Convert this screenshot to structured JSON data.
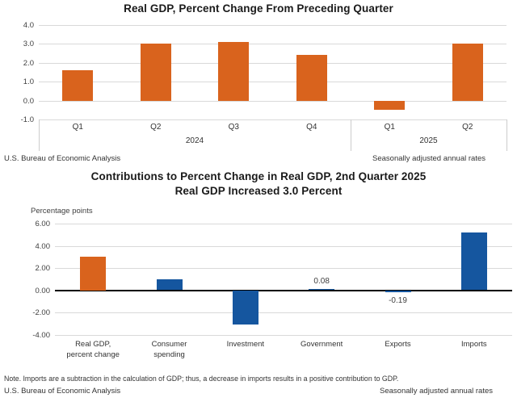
{
  "page_title": "Real GDP charts, U.S. Bureau of Economic Analysis",
  "colors": {
    "orange": "#d9631d",
    "blue": "#15569f",
    "grid": "#d9d9d9",
    "zero_axis": "#000000"
  },
  "chart_data": [
    {
      "type": "bar",
      "title": "Real GDP, Percent Change From Preceding Quarter",
      "categories": [
        "Q1",
        "Q2",
        "Q3",
        "Q4",
        "Q1",
        "Q2"
      ],
      "group_labels": [
        {
          "label": "2024",
          "from": 0,
          "to": 3
        },
        {
          "label": "2025",
          "from": 4,
          "to": 5
        }
      ],
      "values": [
        1.6,
        3.0,
        3.1,
        2.4,
        -0.5,
        3.0
      ],
      "bar_colors": [
        "#d9631d",
        "#d9631d",
        "#d9631d",
        "#d9631d",
        "#d9631d",
        "#d9631d"
      ],
      "ylim": [
        -1.0,
        4.0
      ],
      "yticks": [
        4,
        3,
        2,
        1,
        0,
        -1
      ],
      "ytick_labels": [
        "4.0",
        "3.0",
        "2.0",
        "1.0",
        "0.0",
        "-1.0"
      ],
      "grid": true,
      "legend": "none",
      "source_note": "U.S. Bureau of Economic Analysis",
      "right_note": "Seasonally adjusted annual rates"
    },
    {
      "type": "bar",
      "title": "Contributions to Percent Change in Real GDP, 2nd Quarter 2025",
      "subtitle": "Real GDP Increased 3.0 Percent",
      "ylabel": "Percentage points",
      "categories": [
        "Real GDP,\npercent change",
        "Consumer\nspending",
        "Investment",
        "Government",
        "Exports",
        "Imports"
      ],
      "values": [
        3.0,
        0.98,
        -3.09,
        0.08,
        -0.19,
        5.18
      ],
      "data_labels": [
        "",
        "",
        "",
        "0.08",
        "-0.19",
        ""
      ],
      "bar_colors": [
        "#d9631d",
        "#15569f",
        "#15569f",
        "#15569f",
        "#15569f",
        "#15569f"
      ],
      "ylim": [
        -4.0,
        6.0
      ],
      "yticks": [
        6,
        4,
        2,
        0,
        -2,
        -4
      ],
      "ytick_labels": [
        "6.00",
        "4.00",
        "2.00",
        "0.00",
        "-2.00",
        "-4.00"
      ],
      "grid": true,
      "legend": "none",
      "note": "Note. Imports are a subtraction in the calculation of GDP; thus, a decrease in imports results in a positive contribution to GDP.",
      "source_note": "U.S. Bureau of Economic Analysis",
      "right_note": "Seasonally adjusted annual rates"
    }
  ]
}
